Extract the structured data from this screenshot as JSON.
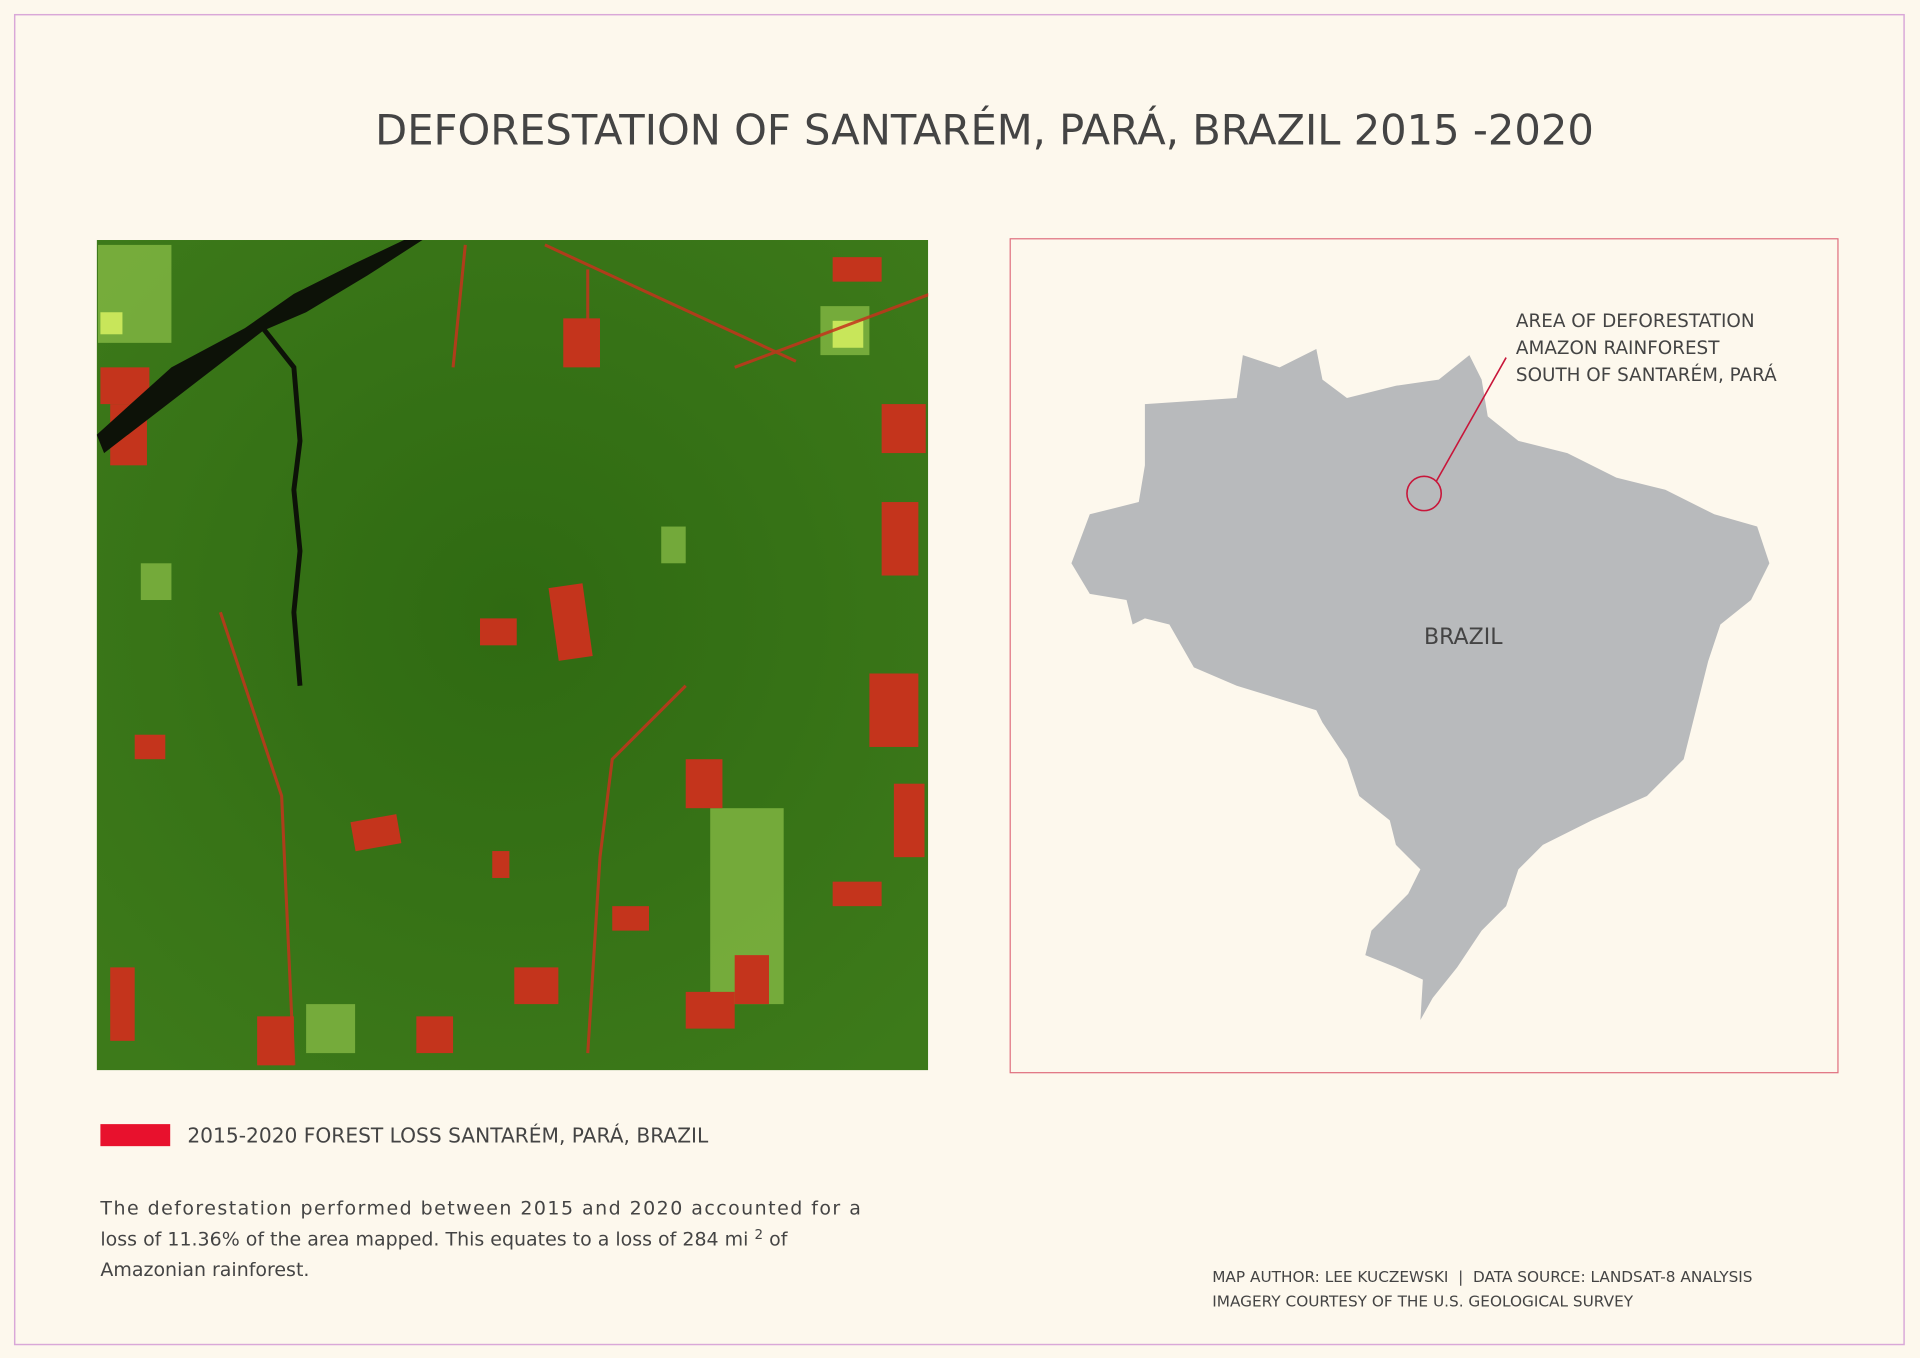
{
  "title": "DEFORESTATION OF SANTARÉM, PARÁ, BRAZIL 2015 -2020",
  "legend": {
    "label": "2015-2020 FOREST LOSS SANTARÉM, PARÁ, BRAZIL"
  },
  "description": [
    "The deforestation performed between 2015 and 2020 accounted for a",
    "loss of 11.36% of the area mapped. This equates to a loss of 284 mi",
    "2",
    "of",
    "Amazonian rainforest."
  ],
  "inset": {
    "annotation": [
      "AREA OF DEFORESTATION",
      "AMAZON RAINFOREST",
      "SOUTH OF SANTARÉM, PARÁ"
    ],
    "country_label": "BRAZIL"
  },
  "credits": [
    "MAP AUTHOR: LEE KUCZEWSKI  |  DATA SOURCE: LANDSAT-8 ANALYSIS",
    "IMAGERY COURTESY OF THE U.S. GEOLOGICAL SURVEY"
  ]
}
